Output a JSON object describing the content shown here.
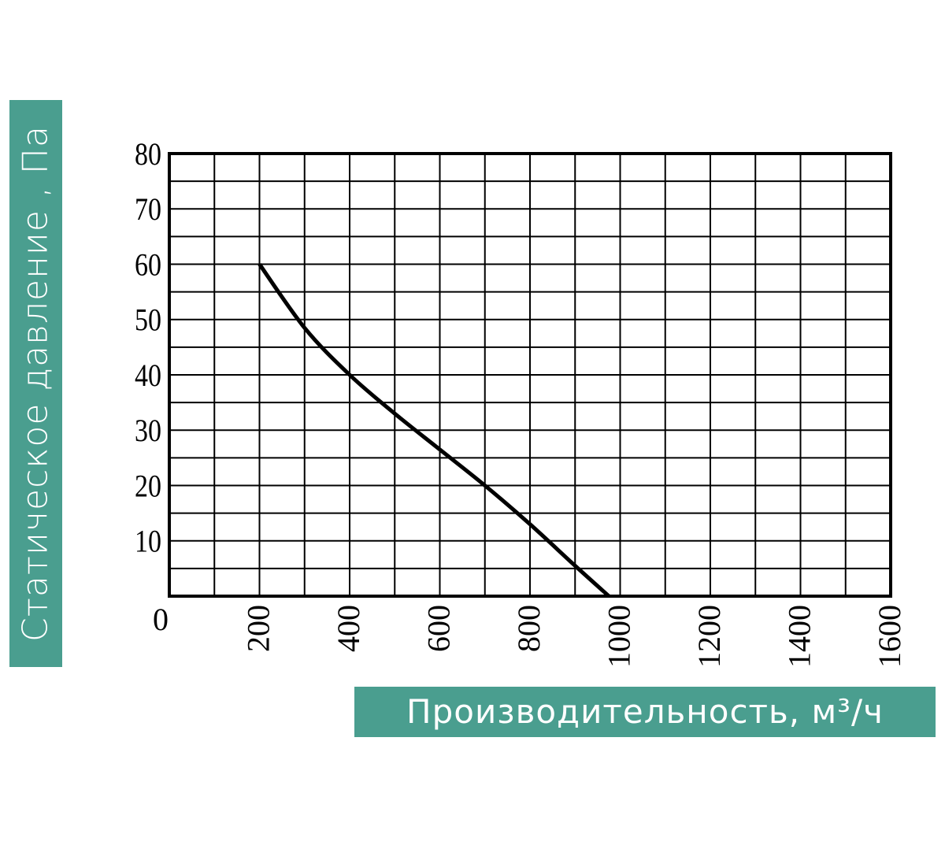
{
  "chart_data": {
    "type": "line",
    "title": "",
    "xlabel": "Производительность, м³/ч",
    "ylabel": "Статическое давление , Па",
    "xlim": [
      0,
      1600
    ],
    "ylim": [
      0,
      80
    ],
    "x_ticks": [
      "0",
      "200",
      "400",
      "600",
      "800",
      "1000",
      "1200",
      "1400",
      "1600"
    ],
    "y_ticks": [
      "10",
      "20",
      "30",
      "40",
      "50",
      "60",
      "70",
      "80"
    ],
    "grid": true,
    "grid_x_step": 100,
    "grid_y_step": 5,
    "series": [
      {
        "x": [
          200,
          300,
          400,
          500,
          600,
          700,
          800,
          900,
          975
        ],
        "y": [
          60,
          48.5,
          40,
          33,
          26.5,
          20,
          13,
          5.5,
          0
        ],
        "color": "#000000"
      }
    ],
    "label_background": "#4a9e8f"
  }
}
